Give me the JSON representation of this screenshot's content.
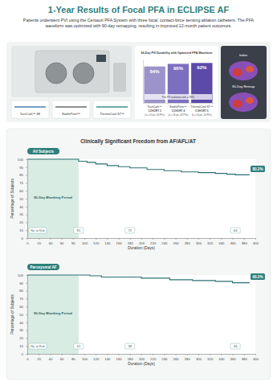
{
  "header": {
    "title": "1-Year Results of Focal PFA in ECLIPSE AF",
    "subtitle": "Patients underwent PVI using the Centauri PFA System with three focal, contact-force sensing ablation catheters. The PFA waveform was optimized with 90-day remapping, resulting in improved 12-month patient outcomes."
  },
  "catheters": [
    "TactiCath™ SE",
    "StablePoint™",
    "ThermoCool ST™"
  ],
  "maps": [
    "Index",
    "90-Day Remap"
  ],
  "section_title": "Clinically Significant Freedom from AF/AFL/AT",
  "chart_data": [
    {
      "type": "bar",
      "title": "90-Day PVI Durability with Optimized PFA Waveform",
      "categories": [
        "TactiCath™",
        "StablePoint™",
        "ThermoCool ST™"
      ],
      "cohorts": [
        {
          "name": "COHORT 3",
          "n": "(n = 15 pts, 56 PVs)"
        },
        {
          "name": "COHORT 4",
          "n": "(n = 16 pts, 62 PVs)"
        },
        {
          "name": "COHORT 5",
          "n": "(n = 14 pts, 54 PVs)"
        }
      ],
      "values": [
        84,
        90,
        92
      ],
      "value_labels": [
        "84%",
        "90%",
        "92%"
      ],
      "data_labels": true,
      "colors": [
        "#9b93c9",
        "#7d6fc0",
        "#5b4aa8"
      ],
      "annotation": "Per-PV isolation rate = 89%",
      "ylim": [
        0,
        100
      ],
      "yticks": [],
      "tick_labels": "x"
    },
    {
      "type": "line",
      "title": "All Subjects",
      "line_style": "step",
      "color": "#2b6f73",
      "x": [
        0,
        60,
        90,
        105,
        120,
        140,
        160,
        180,
        210,
        240,
        270,
        300,
        330,
        350,
        365,
        390
      ],
      "values": [
        100,
        100,
        97.5,
        96,
        94,
        92,
        90.5,
        89,
        87,
        85.5,
        84,
        83,
        82,
        81,
        80.2,
        80.2
      ],
      "end_label": {
        "value": 80.2,
        "label": "80.2%"
      },
      "shaded_region": {
        "x": [
          0,
          90
        ],
        "label": "90-Day Blanking Period"
      },
      "at_risk": {
        "label": "No. at Risk",
        "x": [
          90,
          180,
          365
        ],
        "values": [
          81,
          72,
          64
        ]
      },
      "xlabel": "Duration (Days)",
      "ylabel": "Percentage of Subjects",
      "xlim": [
        0,
        400
      ],
      "ylim": [
        0,
        100
      ],
      "xticks": [
        0,
        20,
        40,
        60,
        80,
        100,
        120,
        140,
        160,
        180,
        200,
        220,
        240,
        260,
        280,
        300,
        320,
        340,
        360,
        380,
        400
      ],
      "yticks": [
        0,
        10,
        20,
        30,
        40,
        50,
        60,
        70,
        80,
        90,
        100
      ],
      "grid": false
    },
    {
      "type": "line",
      "title": "Paroxysmal AF",
      "line_style": "step",
      "color": "#2b6f73",
      "x": [
        0,
        90,
        110,
        130,
        200,
        250,
        290,
        330,
        360,
        390
      ],
      "values": [
        100,
        100,
        99,
        97.5,
        96,
        94,
        93,
        92,
        90.2,
        90.2
      ],
      "end_label": {
        "value": 90.2,
        "label": "90.2%"
      },
      "shaded_region": {
        "x": [
          0,
          90
        ],
        "label": "90-Day Blanking Period"
      },
      "at_risk": {
        "label": "No. at Risk",
        "x": [
          90,
          180,
          365
        ],
        "values": [
          41,
          38,
          36
        ]
      },
      "xlabel": "Duration (Days)",
      "ylabel": "Percentage of Subjects",
      "xlim": [
        0,
        400
      ],
      "ylim": [
        0,
        100
      ],
      "xticks": [
        0,
        20,
        40,
        60,
        80,
        100,
        120,
        140,
        160,
        180,
        200,
        220,
        240,
        260,
        280,
        300,
        320,
        340,
        360,
        380,
        400
      ],
      "yticks": [
        0,
        10,
        20,
        30,
        40,
        50,
        60,
        70,
        80,
        90,
        100
      ],
      "grid": false
    }
  ]
}
